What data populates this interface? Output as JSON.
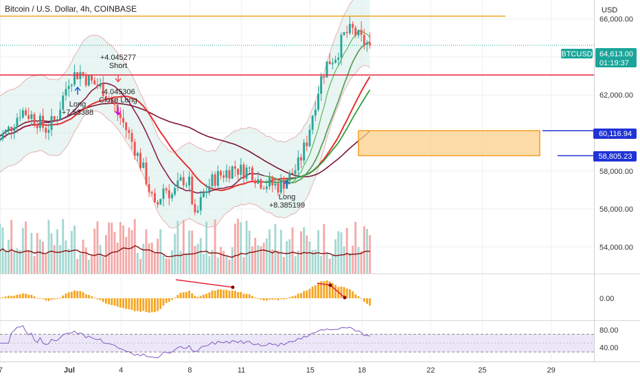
{
  "title": "Bitcoin / U.S. Dollar, 4h, COINBASE",
  "currency": "USD",
  "symbol_tag": "BTCUSD",
  "price_tag": "64,613.00",
  "countdown_tag": "01:19:37",
  "level_tags": [
    "60,116.94",
    "58,805.23"
  ],
  "colors": {
    "up": "#26a69a",
    "down": "#ef5350",
    "vol_up": "#a5d8d2",
    "vol_down": "#f4a9a8",
    "orange_line": "#f0a01e",
    "red_line": "#e5233d",
    "blue_line": "#1f33d6",
    "zone_fill": "#fdd08a",
    "zone_border": "#f39b1f",
    "macd_bar": "#f5a623",
    "rsi_line": "#7e57c2",
    "rsi_band": "#ece7f8",
    "tag_teal": "#1aa59a",
    "ma_maroon": "#7a1433",
    "ma_red": "#e52e2e",
    "ma_green": "#2e9e3e",
    "ma_lightgreen": "#4cb050"
  },
  "chart_data": [
    {
      "type": "candlestick",
      "title": "Bitcoin / U.S. Dollar, 4h, COINBASE",
      "ylim": [
        52600,
        67000
      ],
      "y_ticks": [
        "66,000.00",
        "64,000.00",
        "62,000.00",
        "60,000.00",
        "58,000.00",
        "56,000.00",
        "54,000.00"
      ],
      "y_tick_values": [
        66000,
        64000,
        62000,
        60000,
        58000,
        56000,
        54000
      ],
      "x_tick_labels": [
        "7",
        "Jul",
        "4",
        "8",
        "11",
        "15",
        "18",
        "22",
        "25",
        "29"
      ],
      "annotations": [
        {
          "lines": [
            "+4.045277",
            "Short"
          ],
          "time": 4.6
        },
        {
          "lines": [
            "-4.045306",
            "Close Long"
          ],
          "time": 5.3
        },
        {
          "lines": [
            "Long",
            "+7.53388"
          ],
          "time": 0.0
        },
        {
          "lines": [
            "Long",
            "+8.385199"
          ],
          "time": 12.6
        }
      ],
      "horizontal_levels": [
        {
          "price": 66150,
          "label": "",
          "color": "orange"
        },
        {
          "price": 63050,
          "label": "",
          "color": "red"
        },
        {
          "price": 60116.94,
          "label": "60,116.94",
          "color": "blue"
        },
        {
          "price": 58805.23,
          "label": "58,805.23",
          "color": "blue"
        }
      ],
      "zone": {
        "from_price": 58805.23,
        "to_price": 60116.94
      },
      "last_price": 64613.0
    },
    {
      "type": "bar",
      "title": "",
      "y_ticks": [
        "0.00"
      ],
      "y_tick_values": [
        0
      ]
    },
    {
      "type": "line",
      "title": "",
      "y_ticks": [
        "80.00",
        "40.00"
      ],
      "y_tick_values": [
        80,
        40
      ],
      "ylim": [
        10,
        100
      ],
      "bands": [
        70,
        30
      ]
    }
  ]
}
